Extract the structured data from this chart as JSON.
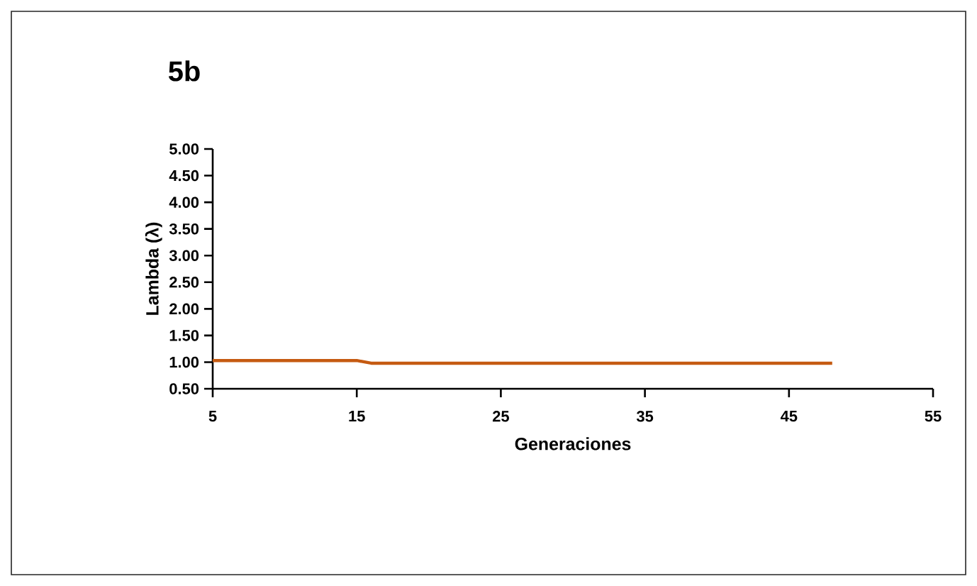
{
  "chart_data": {
    "type": "line",
    "title": "5b",
    "xlabel": "Generaciones",
    "ylabel": "Lambda (λ)",
    "x": [
      5,
      6,
      7,
      8,
      9,
      10,
      11,
      12,
      13,
      14,
      15,
      16,
      17,
      18,
      19,
      20,
      21,
      22,
      23,
      24,
      25,
      26,
      27,
      28,
      29,
      30,
      31,
      32,
      33,
      34,
      35,
      36,
      37,
      38,
      39,
      40,
      41,
      42,
      43,
      44,
      45,
      46,
      47,
      48
    ],
    "series": [
      {
        "color": "#c55a11",
        "values": [
          1.03,
          1.03,
          1.03,
          1.03,
          1.03,
          1.03,
          1.03,
          1.03,
          1.03,
          1.03,
          1.03,
          0.98,
          0.98,
          0.98,
          0.98,
          0.98,
          0.98,
          0.98,
          0.98,
          0.98,
          0.98,
          0.98,
          0.98,
          0.98,
          0.98,
          0.98,
          0.98,
          0.98,
          0.98,
          0.98,
          0.98,
          0.98,
          0.98,
          0.98,
          0.98,
          0.98,
          0.98,
          0.98,
          0.98,
          0.98,
          0.98,
          0.98,
          0.98,
          0.98
        ]
      }
    ],
    "xlim": [
      5,
      55
    ],
    "xticks": [
      5,
      15,
      25,
      35,
      45,
      55
    ],
    "ylim": [
      0.5,
      5.0
    ],
    "yticks": [
      {
        "value": 0.5,
        "label": "0.50"
      },
      {
        "value": 1.0,
        "label": "1.00"
      },
      {
        "value": 1.5,
        "label": "1.50"
      },
      {
        "value": 2.0,
        "label": "2.00"
      },
      {
        "value": 2.5,
        "label": "2.50"
      },
      {
        "value": 3.0,
        "label": "3.00"
      },
      {
        "value": 3.5,
        "label": "3.50"
      },
      {
        "value": 4.0,
        "label": "4.00"
      },
      {
        "value": 4.5,
        "label": "4.50"
      },
      {
        "value": 5.0,
        "label": "5.00"
      }
    ],
    "marker": "none",
    "line_style": "solid"
  }
}
